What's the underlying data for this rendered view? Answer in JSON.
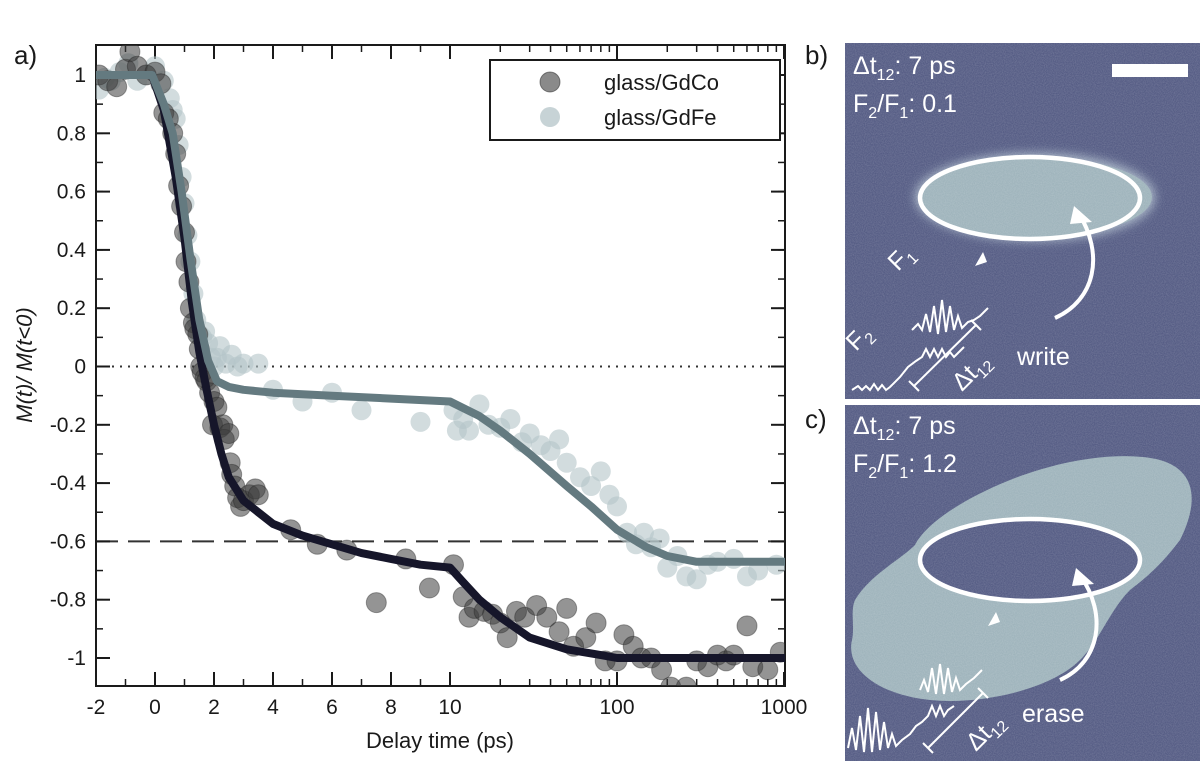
{
  "panels": {
    "a": "a)",
    "b": "b)",
    "c": "c)"
  },
  "chart_data": {
    "type": "scatter",
    "xlabel": "Delay time (ps)",
    "ylabel": "M(t)/ M(t<0)",
    "x_scale": "linear from -2 to 10 ps, logarithmic from 10 to 1000 ps",
    "xlim": [
      -2,
      1000
    ],
    "ylim": [
      -1.1,
      1.1
    ],
    "x_ticks": [
      -2,
      0,
      2,
      4,
      6,
      8,
      10,
      100,
      1000
    ],
    "x_tick_labels": [
      "-2",
      "0",
      "2",
      "4",
      "6",
      "8",
      "10",
      "100",
      "1000"
    ],
    "y_ticks": [
      1,
      0.8,
      0.6,
      0.4,
      0.2,
      0,
      -0.2,
      -0.4,
      -0.6,
      -0.8,
      -1
    ],
    "y_tick_labels": [
      "1",
      "0.8",
      "0.6",
      "0.4",
      "0.2",
      "0",
      "-0.2",
      "-0.4",
      "-0.6",
      "-0.8",
      "-1"
    ],
    "reference_lines": [
      {
        "y": 0,
        "style": "dotted"
      },
      {
        "y": -0.6,
        "style": "dashed"
      }
    ],
    "legend_position": "top-right",
    "series": [
      {
        "name": "glass/GdCo",
        "marker_color": "#3c3c3c",
        "fit_color": "#16162a",
        "points": [
          [
            -1.9,
            1.0
          ],
          [
            -1.6,
            0.98
          ],
          [
            -1.3,
            0.96
          ],
          [
            -1.0,
            1.02
          ],
          [
            -0.85,
            1.08
          ],
          [
            -0.6,
            1.03
          ],
          [
            -0.3,
            1.0
          ],
          [
            0.0,
            1.01
          ],
          [
            0.2,
            0.97
          ],
          [
            0.3,
            0.87
          ],
          [
            0.45,
            0.85
          ],
          [
            0.6,
            0.8
          ],
          [
            0.7,
            0.73
          ],
          [
            0.8,
            0.62
          ],
          [
            0.9,
            0.55
          ],
          [
            1.0,
            0.46
          ],
          [
            1.05,
            0.36
          ],
          [
            1.15,
            0.29
          ],
          [
            1.2,
            0.2
          ],
          [
            1.3,
            0.15
          ],
          [
            1.35,
            0.13
          ],
          [
            1.45,
            0.11
          ],
          [
            1.5,
            0.06
          ],
          [
            1.55,
            0.0
          ],
          [
            1.6,
            -0.02
          ],
          [
            1.7,
            -0.04
          ],
          [
            1.75,
            -0.05
          ],
          [
            1.85,
            -0.09
          ],
          [
            1.95,
            -0.2
          ],
          [
            2.0,
            -0.12
          ],
          [
            2.1,
            -0.14
          ],
          [
            2.2,
            -0.21
          ],
          [
            2.3,
            -0.2
          ],
          [
            2.35,
            -0.25
          ],
          [
            2.5,
            -0.23
          ],
          [
            2.55,
            -0.33
          ],
          [
            2.6,
            -0.37
          ],
          [
            2.7,
            -0.41
          ],
          [
            2.8,
            -0.45
          ],
          [
            2.9,
            -0.48
          ],
          [
            3.0,
            -0.46
          ],
          [
            3.2,
            -0.44
          ],
          [
            3.4,
            -0.42
          ],
          [
            3.5,
            -0.44
          ],
          [
            4.6,
            -0.56
          ],
          [
            5.5,
            -0.61
          ],
          [
            6.5,
            -0.63
          ],
          [
            7.5,
            -0.81
          ],
          [
            8.5,
            -0.66
          ],
          [
            9.3,
            -0.76
          ],
          [
            10.5,
            -0.68
          ],
          [
            12,
            -0.79
          ],
          [
            13,
            -0.86
          ],
          [
            14,
            -0.83
          ],
          [
            16,
            -0.84
          ],
          [
            18,
            -0.85
          ],
          [
            20,
            -0.88
          ],
          [
            22,
            -0.93
          ],
          [
            25,
            -0.84
          ],
          [
            28,
            -0.86
          ],
          [
            33,
            -0.82
          ],
          [
            38,
            -0.86
          ],
          [
            45,
            -0.91
          ],
          [
            50,
            -0.83
          ],
          [
            55,
            -0.96
          ],
          [
            65,
            -0.93
          ],
          [
            75,
            -0.88
          ],
          [
            85,
            -1.01
          ],
          [
            100,
            -1.01
          ],
          [
            110,
            -0.92
          ],
          [
            125,
            -0.96
          ],
          [
            140,
            -1.0
          ],
          [
            160,
            -1.0
          ],
          [
            185,
            -1.04
          ],
          [
            210,
            -1.1
          ],
          [
            260,
            -1.1
          ],
          [
            300,
            -1.01
          ],
          [
            350,
            -1.03
          ],
          [
            400,
            -0.99
          ],
          [
            450,
            -1.01
          ],
          [
            500,
            -0.99
          ],
          [
            600,
            -0.89
          ],
          [
            650,
            -1.03
          ],
          [
            800,
            -1.04
          ],
          [
            950,
            -0.98
          ]
        ],
        "fit": [
          [
            -2,
            1.0
          ],
          [
            -0.1,
            1.0
          ],
          [
            0.3,
            0.88
          ],
          [
            0.7,
            0.65
          ],
          [
            1.0,
            0.44
          ],
          [
            1.25,
            0.22
          ],
          [
            1.5,
            0.05
          ],
          [
            1.75,
            -0.08
          ],
          [
            2.0,
            -0.2
          ],
          [
            2.25,
            -0.3
          ],
          [
            2.5,
            -0.38
          ],
          [
            3.0,
            -0.46
          ],
          [
            3.5,
            -0.5
          ],
          [
            4.0,
            -0.54
          ],
          [
            5.0,
            -0.58
          ],
          [
            6.0,
            -0.61
          ],
          [
            7.0,
            -0.64
          ],
          [
            8.0,
            -0.66
          ],
          [
            9.0,
            -0.68
          ],
          [
            10.0,
            -0.69
          ],
          [
            12,
            -0.74
          ],
          [
            15,
            -0.8
          ],
          [
            20,
            -0.86
          ],
          [
            30,
            -0.93
          ],
          [
            50,
            -0.97
          ],
          [
            80,
            -0.99
          ],
          [
            100,
            -1.0
          ],
          [
            1000,
            -1.0
          ]
        ]
      },
      {
        "name": "glass/GdFe",
        "marker_color": "#b4c4c8",
        "fit_color": "#647a80",
        "points": [
          [
            -1.9,
            0.95
          ],
          [
            -1.7,
            0.99
          ],
          [
            -1.5,
            0.98
          ],
          [
            -1.2,
            1.01
          ],
          [
            -0.9,
            1.04
          ],
          [
            -0.6,
            0.98
          ],
          [
            -0.3,
            1.0
          ],
          [
            0.0,
            1.03
          ],
          [
            0.3,
            0.98
          ],
          [
            0.5,
            0.92
          ],
          [
            0.6,
            0.88
          ],
          [
            0.7,
            0.85
          ],
          [
            0.8,
            0.76
          ],
          [
            0.9,
            0.65
          ],
          [
            1.0,
            0.56
          ],
          [
            1.1,
            0.45
          ],
          [
            1.2,
            0.36
          ],
          [
            1.3,
            0.25
          ],
          [
            1.4,
            0.16
          ],
          [
            1.5,
            0.11
          ],
          [
            1.6,
            0.1
          ],
          [
            1.7,
            0.12
          ],
          [
            1.8,
            0.08
          ],
          [
            1.9,
            0.03
          ],
          [
            2.0,
            0.0
          ],
          [
            2.1,
            0.03
          ],
          [
            2.2,
            0.07
          ],
          [
            2.4,
            0.01
          ],
          [
            2.6,
            0.04
          ],
          [
            2.8,
            0.0
          ],
          [
            3.0,
            0.01
          ],
          [
            3.5,
            0.01
          ],
          [
            4.0,
            -0.08
          ],
          [
            5.0,
            -0.12
          ],
          [
            6.0,
            -0.09
          ],
          [
            7.0,
            -0.15
          ],
          [
            9.0,
            -0.19
          ],
          [
            10.5,
            -0.15
          ],
          [
            11,
            -0.22
          ],
          [
            12,
            -0.18
          ],
          [
            13,
            -0.22
          ],
          [
            15,
            -0.13
          ],
          [
            17,
            -0.2
          ],
          [
            20,
            -0.21
          ],
          [
            23,
            -0.18
          ],
          [
            27,
            -0.26
          ],
          [
            30,
            -0.23
          ],
          [
            35,
            -0.27
          ],
          [
            40,
            -0.29
          ],
          [
            45,
            -0.25
          ],
          [
            50,
            -0.33
          ],
          [
            60,
            -0.38
          ],
          [
            70,
            -0.41
          ],
          [
            80,
            -0.36
          ],
          [
            90,
            -0.44
          ],
          [
            100,
            -0.48
          ],
          [
            115,
            -0.57
          ],
          [
            130,
            -0.61
          ],
          [
            145,
            -0.57
          ],
          [
            160,
            -0.62
          ],
          [
            180,
            -0.59
          ],
          [
            200,
            -0.69
          ],
          [
            230,
            -0.65
          ],
          [
            260,
            -0.72
          ],
          [
            300,
            -0.73
          ],
          [
            350,
            -0.68
          ],
          [
            400,
            -0.67
          ],
          [
            500,
            -0.66
          ],
          [
            600,
            -0.72
          ],
          [
            700,
            -0.7
          ],
          [
            900,
            -0.68
          ]
        ],
        "fit": [
          [
            -2,
            1.0
          ],
          [
            -0.1,
            1.0
          ],
          [
            0.3,
            0.9
          ],
          [
            0.6,
            0.8
          ],
          [
            0.9,
            0.6
          ],
          [
            1.2,
            0.37
          ],
          [
            1.5,
            0.16
          ],
          [
            1.8,
            0.02
          ],
          [
            2.1,
            -0.05
          ],
          [
            2.5,
            -0.07
          ],
          [
            3.0,
            -0.08
          ],
          [
            4.0,
            -0.09
          ],
          [
            6.0,
            -0.1
          ],
          [
            8.0,
            -0.11
          ],
          [
            10.0,
            -0.12
          ],
          [
            15,
            -0.17
          ],
          [
            20,
            -0.22
          ],
          [
            30,
            -0.3
          ],
          [
            50,
            -0.41
          ],
          [
            70,
            -0.48
          ],
          [
            100,
            -0.56
          ],
          [
            150,
            -0.62
          ],
          [
            200,
            -0.65
          ],
          [
            300,
            -0.67
          ],
          [
            1000,
            -0.67
          ]
        ]
      }
    ]
  },
  "images": {
    "b": {
      "dt_label": "Δt",
      "dt_sub": "12",
      "dt_value": ": 7 ps",
      "ratio_f2": "F",
      "ratio_f2_sub": "2",
      "ratio_sep": "/F",
      "ratio_f1_sub": "1",
      "ratio_value": ": 0.1",
      "pulse_f1": "F",
      "pulse_f1_sub": "1",
      "pulse_f2": "F",
      "pulse_f2_sub": "2",
      "delay_label": "Δt",
      "delay_sub": "12",
      "action": "write"
    },
    "c": {
      "dt_label": "Δt",
      "dt_sub": "12",
      "dt_value": ": 7 ps",
      "ratio_f2": "F",
      "ratio_f2_sub": "2",
      "ratio_sep": "/F",
      "ratio_f1_sub": "1",
      "ratio_value": ": 1.2",
      "delay_label": "Δt",
      "delay_sub": "12",
      "action": "erase"
    }
  },
  "colors": {
    "image_background": "#565d85",
    "domain_fill": "#9fb4bc",
    "annotation": "#ffffff"
  }
}
